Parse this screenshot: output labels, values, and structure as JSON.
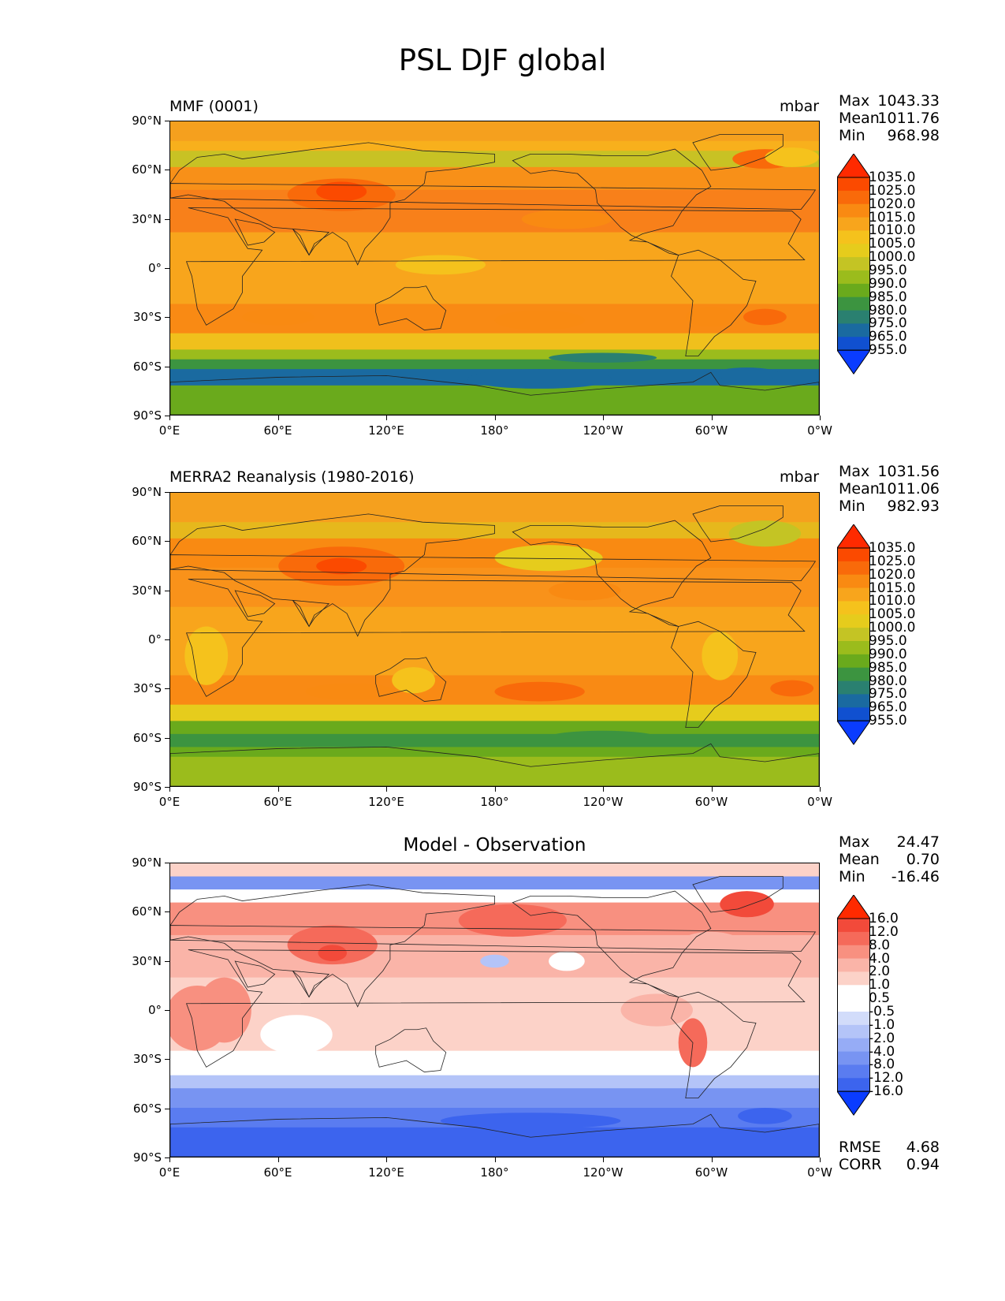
{
  "title": "PSL DJF global",
  "panels": [
    {
      "id": "model",
      "left_label": "MMF (0001)",
      "center_label": "",
      "units": "mbar",
      "stats": [
        {
          "k": "Max",
          "v": "1043.33"
        },
        {
          "k": "Mean",
          "v": "1011.76"
        },
        {
          "k": "Min",
          "v": "968.98"
        }
      ],
      "colorbar_labels": [
        "1035.0",
        "1025.0",
        "1020.0",
        "1015.0",
        "1010.0",
        "1005.0",
        "1000.0",
        "995.0",
        "990.0",
        "985.0",
        "980.0",
        "975.0",
        "965.0",
        "955.0"
      ],
      "colors": {
        "bg": "#f8a51c",
        "bands": [
          "#ff6a00",
          "#ffffff"
        ]
      }
    },
    {
      "id": "obs",
      "left_label": "MERRA2 Reanalysis (1980-2016)",
      "center_label": "",
      "units": "mbar",
      "stats": [
        {
          "k": "Max",
          "v": "1031.56"
        },
        {
          "k": "Mean",
          "v": "1011.06"
        },
        {
          "k": "Min",
          "v": "982.93"
        }
      ],
      "colorbar_labels": [
        "1035.0",
        "1025.0",
        "1020.0",
        "1015.0",
        "1010.0",
        "1005.0",
        "1000.0",
        "995.0",
        "990.0",
        "985.0",
        "980.0",
        "975.0",
        "965.0",
        "955.0"
      ]
    },
    {
      "id": "diff",
      "left_label": "",
      "center_label": "Model - Observation",
      "units": "",
      "stats": [
        {
          "k": "Max",
          "v": "24.47"
        },
        {
          "k": "Mean",
          "v": "0.70"
        },
        {
          "k": "Min",
          "v": "-16.46"
        }
      ],
      "colorbar_labels": [
        "16.0",
        "12.0",
        "8.0",
        "4.0",
        "2.0",
        "1.0",
        "0.5",
        "-0.5",
        "-1.0",
        "-2.0",
        "-4.0",
        "-8.0",
        "-12.0",
        "-16.0"
      ],
      "extra_stats": [
        {
          "k": "RMSE",
          "v": "4.68"
        },
        {
          "k": "CORR",
          "v": "0.94"
        }
      ]
    }
  ],
  "axes": {
    "y_ticks": [
      "90°N",
      "60°N",
      "30°N",
      "0°",
      "30°S",
      "60°S",
      "90°S"
    ],
    "x_ticks": [
      "0°E",
      "60°E",
      "120°E",
      "180°",
      "120°W",
      "60°W",
      "0°W"
    ]
  },
  "palettes": {
    "psl": [
      "#ff2a00",
      "#fb4a00",
      "#f96a0a",
      "#f98a12",
      "#f8a51c",
      "#f5c21c",
      "#e6cc1c",
      "#c4c424",
      "#9bbc1c",
      "#6aaa1c",
      "#3c9440",
      "#2a8070",
      "#1a6aa0",
      "#1050d0",
      "#0a3cff"
    ],
    "diff": [
      "#ff2a00",
      "#f24a3a",
      "#f56a5a",
      "#f89080",
      "#fab4a8",
      "#fcd2c8",
      "#ffffff",
      "#ffffff",
      "#d2dcfa",
      "#b4c4f8",
      "#96acf6",
      "#7894f2",
      "#5a7cf0",
      "#3c64ee",
      "#0a3cff"
    ]
  }
}
